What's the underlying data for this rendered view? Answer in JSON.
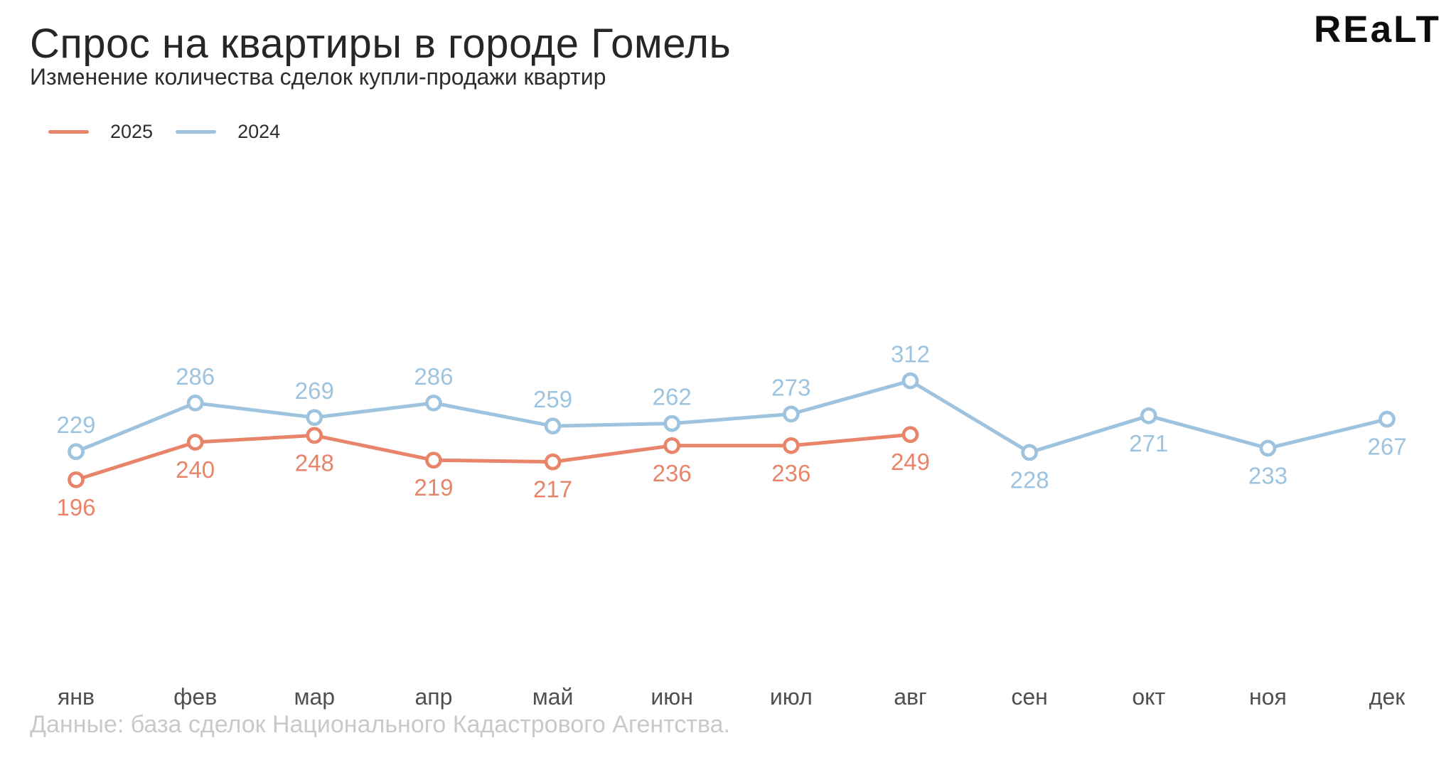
{
  "header": {
    "title": "Спрос на квартиры в городе Гомель",
    "subtitle": "Изменение количества сделок купли-продажи квартир"
  },
  "logo": {
    "text": "REaLT"
  },
  "legend": {
    "items": [
      {
        "label": "2025",
        "color": "#e8846a"
      },
      {
        "label": "2024",
        "color": "#9dc3de"
      }
    ]
  },
  "chart_data": {
    "type": "line",
    "title": "Спрос на квартиры в городе Гомель",
    "subtitle": "Изменение количества сделок купли-продажи квартир",
    "categories": [
      "янв",
      "фев",
      "мар",
      "апр",
      "май",
      "июн",
      "июл",
      "авг",
      "сен",
      "окт",
      "ноя",
      "дек"
    ],
    "series": [
      {
        "name": "2025",
        "color": "#e8846a",
        "values": [
          196,
          240,
          248,
          219,
          217,
          236,
          236,
          249
        ],
        "label_position": "below"
      },
      {
        "name": "2024",
        "color": "#9dc3de",
        "values": [
          229,
          286,
          269,
          286,
          259,
          262,
          273,
          312,
          228,
          271,
          233,
          267
        ],
        "label_position": "above-until-aug-then-below"
      }
    ],
    "grid": false,
    "y_axis_visible": false,
    "markers": "open-circle",
    "legend_position": "top-left",
    "data_labels": true
  },
  "footer": {
    "source": "Данные: база сделок Национального Кадастрового Агентства."
  }
}
